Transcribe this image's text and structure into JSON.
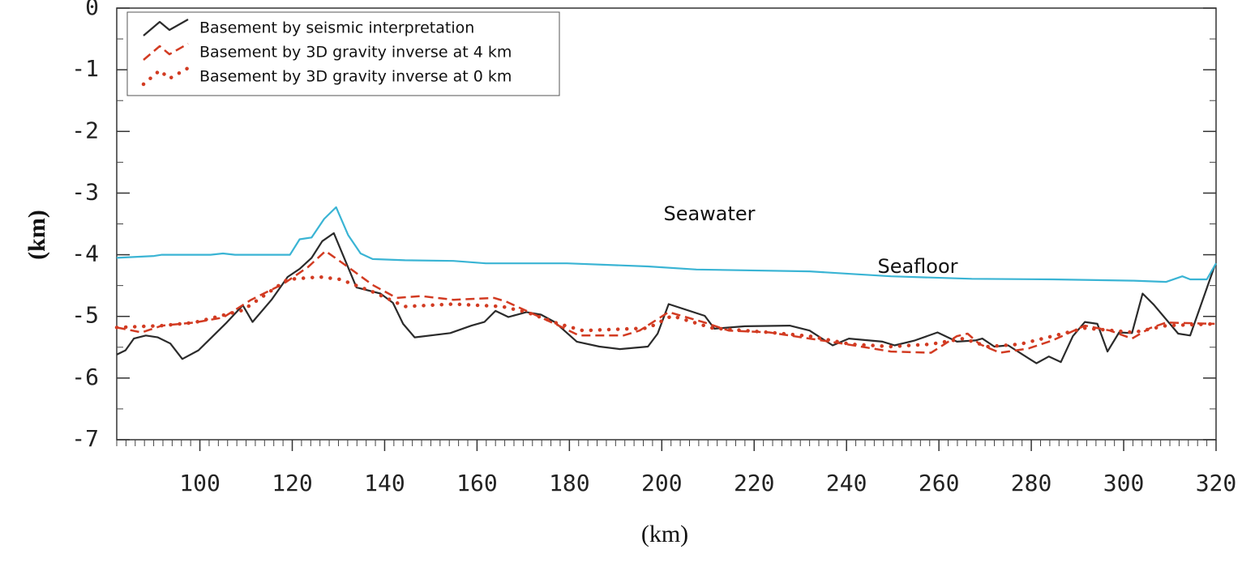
{
  "chart_data": {
    "type": "line",
    "x_label": "(km)",
    "y_label": "(km)",
    "xlim": [
      82,
      320
    ],
    "ylim": [
      -7,
      0
    ],
    "xticks": [
      100,
      120,
      140,
      160,
      180,
      200,
      220,
      240,
      260,
      280,
      300,
      320
    ],
    "yticks": [
      0,
      -1,
      -2,
      -3,
      -4,
      -5,
      -6,
      -7
    ],
    "legend": "upper left",
    "annotations": [
      "Seawater",
      "Seafloor"
    ],
    "series": [
      {
        "name": "Basement by seismic interpretation",
        "color": "#2b2b2b",
        "style": "solid",
        "x": [
          82,
          83.9,
          85.7,
          88.3,
          90.9,
          93.6,
          96.2,
          99.7,
          105.8,
          109.3,
          111.4,
          115.5,
          119,
          121.6,
          124.2,
          126.5,
          129,
          133.9,
          139.1,
          141.8,
          144,
          146.5,
          154.2,
          158.8,
          161.6,
          164,
          166.8,
          170.7,
          173.8,
          176.8,
          181.6,
          186.5,
          190.9,
          197,
          199.1,
          201.5,
          209.3,
          211.4,
          218,
          227.7,
          232,
          237,
          240.5,
          247.8,
          250.4,
          254.8,
          259.7,
          263.9,
          267.9,
          269.4,
          272,
          275,
          281.1,
          283.8,
          286.4,
          289,
          291.6,
          294.3,
          296.5,
          299,
          301.8,
          304.1,
          306.5,
          311.8,
          314.4,
          319.7
        ],
        "values": [
          -5.62,
          -5.55,
          -5.36,
          -5.31,
          -5.34,
          -5.44,
          -5.69,
          -5.55,
          -5.1,
          -4.82,
          -5.09,
          -4.73,
          -4.36,
          -4.23,
          -4.05,
          -3.78,
          -3.65,
          -4.53,
          -4.63,
          -4.78,
          -5.12,
          -5.34,
          -5.27,
          -5.15,
          -5.09,
          -4.91,
          -5.01,
          -4.93,
          -4.97,
          -5.09,
          -5.41,
          -5.49,
          -5.53,
          -5.49,
          -5.28,
          -4.8,
          -4.99,
          -5.2,
          -5.16,
          -5.15,
          -5.23,
          -5.47,
          -5.36,
          -5.41,
          -5.47,
          -5.39,
          -5.26,
          -5.41,
          -5.39,
          -5.36,
          -5.49,
          -5.47,
          -5.76,
          -5.65,
          -5.74,
          -5.32,
          -5.09,
          -5.12,
          -5.57,
          -5.26,
          -5.27,
          -4.63,
          -4.81,
          -5.28,
          -5.31,
          -4.18
        ]
      },
      {
        "name": "Basement by 3D gravity inverse at 4 km",
        "color": "#d23b22",
        "style": "dashed",
        "x": [
          82,
          87.4,
          91.8,
          98.8,
          105,
          111.1,
          118.1,
          123.4,
          127.2,
          132.1,
          137.4,
          142.6,
          147.9,
          154.9,
          163.7,
          166.3,
          170.7,
          177.7,
          182.1,
          191.7,
          195.2,
          201.5,
          209.3,
          214.5,
          223.3,
          232,
          239,
          249.6,
          258.3,
          263.9,
          266.2,
          268.8,
          273.2,
          279.4,
          284.6,
          291.6,
          297,
          301.8,
          305.7,
          309.2,
          319.7
        ],
        "values": [
          -5.18,
          -5.26,
          -5.15,
          -5.1,
          -5.02,
          -4.73,
          -4.47,
          -4.2,
          -3.94,
          -4.2,
          -4.49,
          -4.7,
          -4.67,
          -4.73,
          -4.7,
          -4.76,
          -4.91,
          -5.15,
          -5.31,
          -5.31,
          -5.23,
          -4.93,
          -5.1,
          -5.23,
          -5.26,
          -5.36,
          -5.44,
          -5.57,
          -5.59,
          -5.32,
          -5.28,
          -5.45,
          -5.59,
          -5.52,
          -5.39,
          -5.15,
          -5.23,
          -5.36,
          -5.19,
          -5.1,
          -5.12
        ]
      },
      {
        "name": "Basement by 3D gravity inverse at 0 km",
        "color": "#d23b22",
        "style": "dotted",
        "x": [
          82,
          91.8,
          98.8,
          109.3,
          119,
          126,
          130.4,
          137.4,
          144.4,
          154.9,
          165.4,
          170.7,
          177.7,
          182.9,
          197,
          202.2,
          211,
          223.3,
          232,
          240.8,
          249.6,
          258.3,
          265.3,
          270.6,
          277.6,
          284.6,
          291.6,
          302.2,
          309.2,
          320
        ],
        "values": [
          -5.18,
          -5.15,
          -5.1,
          -4.9,
          -4.4,
          -4.36,
          -4.4,
          -4.6,
          -4.84,
          -4.8,
          -4.84,
          -4.93,
          -5.12,
          -5.23,
          -5.19,
          -4.99,
          -5.19,
          -5.26,
          -5.32,
          -5.45,
          -5.49,
          -5.45,
          -5.36,
          -5.49,
          -5.45,
          -5.32,
          -5.19,
          -5.26,
          -5.15,
          -5.12
        ]
      },
      {
        "color": "#3ab4d4",
        "style": "solid",
        "x": [
          82,
          90.1,
          91.8,
          102.3,
          105,
          107.6,
          119.5,
          121.6,
          124.2,
          126.9,
          129.5,
          132.1,
          134.8,
          137.4,
          144.4,
          154.9,
          161.9,
          179.5,
          197,
          207.5,
          232,
          240.8,
          249.6,
          267.1,
          284.6,
          302.2,
          309.2,
          312.7,
          314.4,
          318,
          320
        ],
        "values": [
          -4.05,
          -4.02,
          -4.0,
          -4.0,
          -3.98,
          -4.0,
          -4.0,
          -3.75,
          -3.72,
          -3.42,
          -3.23,
          -3.68,
          -3.98,
          -4.07,
          -4.09,
          -4.1,
          -4.14,
          -4.14,
          -4.19,
          -4.24,
          -4.27,
          -4.31,
          -4.35,
          -4.39,
          -4.4,
          -4.42,
          -4.44,
          -4.35,
          -4.4,
          -4.4,
          -4.14
        ]
      }
    ]
  }
}
